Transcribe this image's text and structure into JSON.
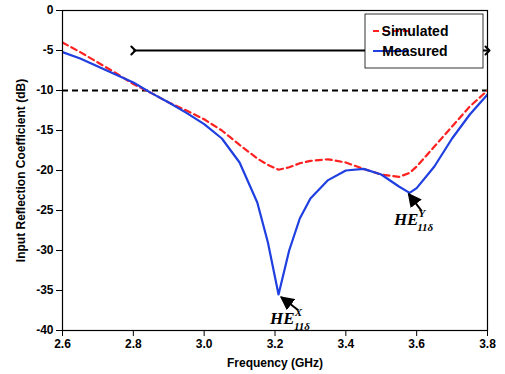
{
  "chart_data": {
    "type": "line",
    "xlabel": "Frequency (GHz)",
    "ylabel": "Input Reflection Coefficient (dB)",
    "x": [
      2.6,
      2.65,
      2.7,
      2.75,
      2.8,
      2.85,
      2.9,
      2.95,
      3.0,
      3.05,
      3.1,
      3.15,
      3.18,
      3.21,
      3.24,
      3.27,
      3.3,
      3.35,
      3.4,
      3.45,
      3.5,
      3.55,
      3.58,
      3.6,
      3.65,
      3.7,
      3.75,
      3.8
    ],
    "series": [
      {
        "name": "Simulated",
        "color": "#ff2020",
        "line_style": "dashed",
        "values": [
          -4.0,
          -5.2,
          -6.5,
          -7.8,
          -9.2,
          -10.3,
          -11.5,
          -12.5,
          -13.6,
          -15,
          -16.8,
          -18.5,
          -19.3,
          -19.9,
          -19.6,
          -19.1,
          -18.8,
          -18.6,
          -19,
          -19.8,
          -20.5,
          -20.8,
          -20.3,
          -19.5,
          -17,
          -14.5,
          -12,
          -10
        ]
      },
      {
        "name": "Measured",
        "color": "#1f3fe0",
        "line_style": "solid",
        "values": [
          -5.2,
          -6.0,
          -7.0,
          -8.0,
          -9.0,
          -10.3,
          -11.5,
          -12.8,
          -14.2,
          -16,
          -19,
          -24,
          -29,
          -35.5,
          -30,
          -26,
          -23.5,
          -21.2,
          -20,
          -19.8,
          -20.5,
          -22,
          -22.8,
          -22.2,
          -19.5,
          -16,
          -13,
          -10.5
        ]
      }
    ],
    "xlim": [
      2.6,
      3.8
    ],
    "xticks": [
      2.6,
      2.8,
      {
        "value": 3.0,
        "label": "3.0"
      },
      3.2,
      3.4,
      3.6,
      3.8
    ],
    "ylim": [
      -40,
      0
    ],
    "yticks": [
      -40,
      -35,
      -30,
      -25,
      -20,
      -15,
      -10,
      -5,
      0
    ],
    "grid": false,
    "legend": "upper right",
    "reference_line": {
      "y": -10,
      "color": "#000000",
      "line_style": "dashed"
    },
    "bandwidth_arrow": {
      "x": [
        2.8,
        3.8
      ],
      "y": -5,
      "color": "#000000"
    },
    "annotations": [
      {
        "text": "HE",
        "sup": "X",
        "sub": "11δ",
        "x": 3.21,
        "y": -35.5
      },
      {
        "text": "HE",
        "sup": "Y",
        "sub": "11δ",
        "x": 3.57,
        "y": -22.6
      }
    ]
  }
}
